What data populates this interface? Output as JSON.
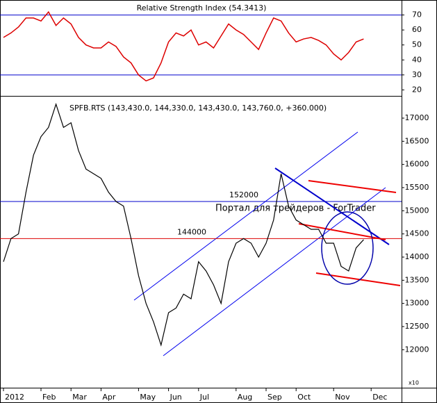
{
  "chart_data": [
    {
      "type": "line",
      "title": "Relative Strength Index (54.3413)",
      "color": "#dd0000",
      "values": [
        55,
        58,
        62,
        68,
        68,
        66,
        72,
        63,
        68,
        64,
        55,
        50,
        48,
        48,
        52,
        49,
        42,
        38,
        30,
        26,
        28,
        38,
        52,
        58,
        56,
        60,
        50,
        52,
        48,
        56,
        64,
        60,
        57,
        52,
        47,
        58,
        68,
        66,
        58,
        52,
        54,
        55,
        53,
        50,
        44,
        40,
        45,
        52,
        54,
        null
      ],
      "ylim": [
        16,
        80
      ],
      "yticks": [
        20,
        30,
        40,
        50,
        60,
        70
      ],
      "levels": [
        {
          "value": 70,
          "color": "#0000cc"
        },
        {
          "value": 30,
          "color": "#0000cc"
        }
      ]
    },
    {
      "type": "line",
      "title": "SPFB.RTS (143,430.0, 144,330.0, 143,430.0, 143,760.0, +360.000)",
      "color": "#000000",
      "categories": [
        "2012",
        null,
        null,
        null,
        null,
        "Feb",
        null,
        null,
        null,
        "Mar",
        null,
        null,
        null,
        "Apr",
        null,
        null,
        null,
        null,
        "May",
        null,
        null,
        null,
        "Jun",
        null,
        null,
        null,
        "Jul",
        null,
        null,
        null,
        null,
        "Aug",
        null,
        null,
        null,
        "Sep",
        null,
        null,
        null,
        "Oct",
        null,
        null,
        null,
        null,
        "Nov",
        null,
        null,
        null,
        null,
        "Dec"
      ],
      "values": [
        13900,
        14400,
        14500,
        15400,
        16200,
        16600,
        16800,
        17300,
        16800,
        16900,
        16300,
        15900,
        15800,
        15700,
        15400,
        15200,
        15100,
        14400,
        13600,
        13000,
        12600,
        12100,
        12800,
        12900,
        13200,
        13100,
        13900,
        13700,
        13400,
        13000,
        13900,
        14300,
        14400,
        14300,
        14000,
        14300,
        14800,
        15800,
        15100,
        14800,
        14700,
        14600,
        14600,
        14300,
        14300,
        13800,
        13700,
        14200,
        14376,
        null
      ],
      "ylim": [
        11180,
        17450
      ],
      "yticks": [
        12000,
        12500,
        13000,
        13500,
        14000,
        14500,
        15000,
        15500,
        16000,
        16500,
        17000
      ],
      "axis_unit": "x10",
      "watermark": "Портал для трейдеров - ForTrader",
      "levels": [
        {
          "value": 15200,
          "label": "152000",
          "color": "#0000cc"
        },
        {
          "value": 14400,
          "label": "144000",
          "color": "#dd0000"
        }
      ]
    }
  ]
}
